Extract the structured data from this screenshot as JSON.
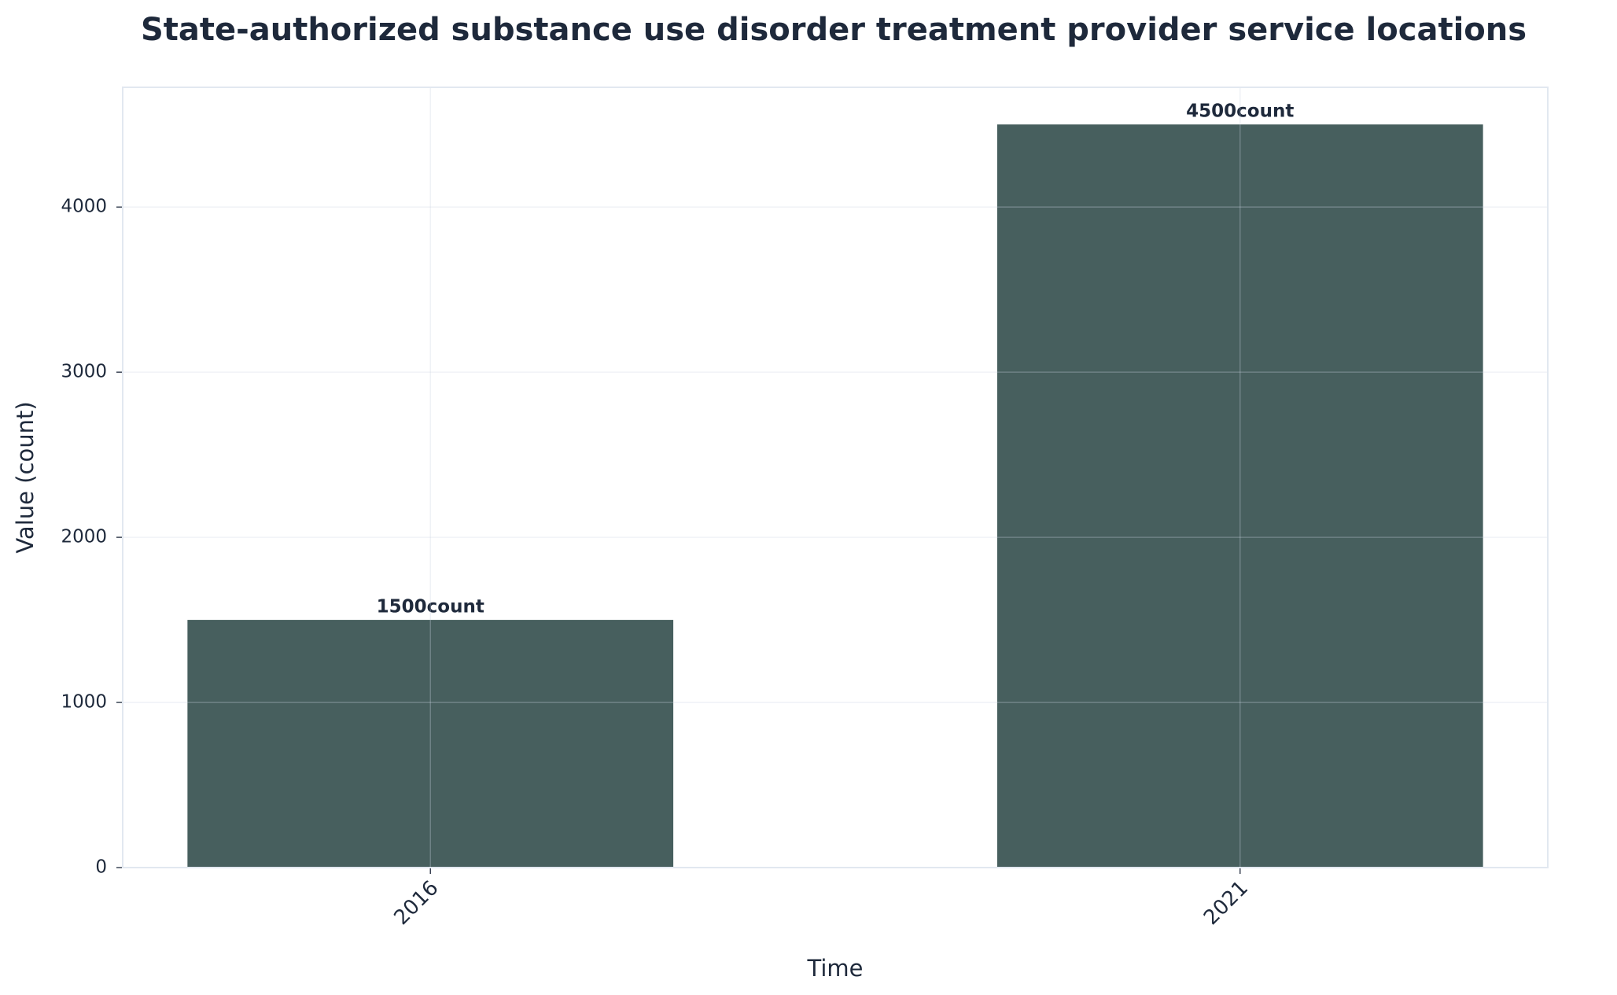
{
  "chart_data": {
    "type": "bar",
    "title": "State-authorized substance use disorder treatment provider service locations",
    "xlabel": "Time",
    "ylabel": "Value (count)",
    "categories": [
      "2016",
      "2021"
    ],
    "values": [
      1500,
      4500
    ],
    "value_labels": [
      "1500count",
      "4500count"
    ],
    "color": "#475f5e",
    "ylim": [
      0,
      4725
    ],
    "yticks": [
      0,
      1000,
      2000,
      3000,
      4000
    ],
    "grid": true
  }
}
